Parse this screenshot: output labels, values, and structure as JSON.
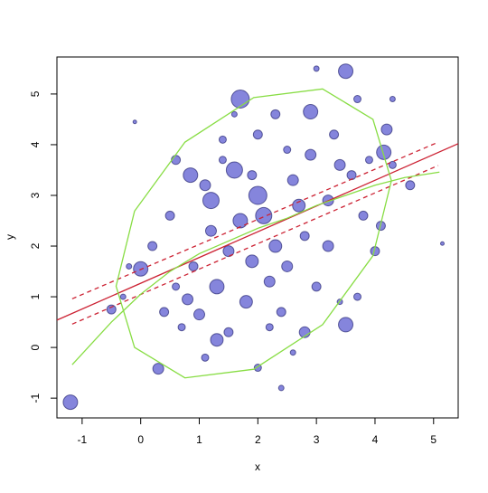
{
  "chart_data": {
    "type": "scatter",
    "xlabel": "x",
    "ylabel": "y",
    "xlim": [
      -1.43,
      5.42
    ],
    "ylim": [
      -1.39,
      5.73
    ],
    "xticks": [
      -1,
      0,
      1,
      2,
      3,
      4,
      5
    ],
    "yticks": [
      -1,
      0,
      1,
      2,
      3,
      4,
      5
    ],
    "color": "#2020c0",
    "x": [
      -1.2,
      1.7,
      3.5,
      3.0,
      2.9,
      4.2,
      4.15,
      0.85,
      3.5,
      5.15,
      0.3,
      0.0,
      -0.5,
      2.0,
      -0.1,
      2.3,
      1.6,
      2.0,
      1.2,
      1.3,
      0.8,
      1.0,
      2.5,
      3.2,
      3.8,
      2.7,
      2.3,
      1.9,
      0.5,
      0.6,
      1.5,
      1.3,
      2.4,
      2.8,
      3.0,
      4.0,
      3.4,
      3.6,
      3.3,
      2.9,
      0.2,
      1.7,
      2.6,
      1.1,
      2.1,
      1.5,
      0.9,
      3.9,
      4.3,
      4.6,
      3.7,
      -0.3,
      1.8,
      2.2,
      2.0,
      1.4,
      0.4,
      1.1,
      2.6,
      3.4,
      0.7,
      1.9,
      1.2,
      2.8,
      3.2,
      4.1,
      2.5,
      1.6,
      3.7,
      4.3,
      -0.2,
      0.6,
      2.2,
      2.4,
      1.4
    ],
    "y": [
      -1.08,
      4.9,
      5.45,
      5.5,
      4.65,
      4.3,
      3.85,
      3.4,
      0.45,
      2.05,
      -0.42,
      1.55,
      0.75,
      -0.4,
      4.45,
      4.6,
      3.5,
      3.0,
      2.9,
      1.2,
      0.95,
      0.65,
      1.6,
      2.0,
      2.6,
      2.8,
      2.0,
      1.7,
      2.6,
      3.7,
      0.3,
      0.15,
      0.7,
      0.3,
      1.2,
      1.9,
      3.6,
      3.4,
      4.2,
      3.8,
      2.0,
      2.5,
      3.3,
      3.2,
      2.6,
      1.9,
      1.6,
      3.7,
      3.6,
      3.2,
      1.0,
      1.0,
      0.9,
      1.3,
      4.2,
      4.1,
      0.7,
      -0.2,
      -0.1,
      0.9,
      0.4,
      3.4,
      2.3,
      2.2,
      2.9,
      2.4,
      3.9,
      4.6,
      4.9,
      4.9,
      1.6,
      1.2,
      0.4,
      -0.8,
      3.7
    ],
    "sizes": [
      8,
      10,
      8,
      3,
      8,
      6,
      8,
      8,
      8,
      2,
      6,
      8,
      5,
      4,
      2,
      5,
      9,
      10,
      9,
      8,
      6,
      6,
      6,
      6,
      5,
      7,
      7,
      7,
      5,
      5,
      5,
      7,
      5,
      6,
      5,
      5,
      6,
      5,
      5,
      6,
      5,
      8,
      6,
      6,
      9,
      6,
      5,
      4,
      4,
      5,
      4,
      3,
      7,
      6,
      5,
      4,
      5,
      4,
      3,
      3,
      4,
      5,
      6,
      5,
      6,
      5,
      4,
      3,
      4,
      3,
      3,
      4,
      4,
      3,
      4
    ],
    "overlays": [
      {
        "type": "line",
        "color": "#cc2233",
        "dash": false,
        "x": [
          -1.43,
          5.42
        ],
        "y": [
          0.54,
          4.02
        ]
      },
      {
        "type": "line",
        "color": "#cc2233",
        "dash": true,
        "x": [
          -1.17,
          5.08
        ],
        "y": [
          0.96,
          4.05
        ]
      },
      {
        "type": "line",
        "color": "#cc2233",
        "dash": true,
        "x": [
          -1.17,
          5.08
        ],
        "y": [
          0.46,
          3.59
        ]
      },
      {
        "type": "line",
        "color": "#88dd44",
        "dash": false,
        "x": [
          -1.17,
          -0.5,
          0,
          0.5,
          1,
          1.5,
          2,
          2.5,
          3,
          3.5,
          4,
          4.5,
          5.1
        ],
        "y": [
          -0.34,
          0.5,
          1.05,
          1.5,
          1.85,
          2.1,
          2.35,
          2.55,
          2.8,
          3.0,
          3.2,
          3.35,
          3.46
        ]
      },
      {
        "type": "line",
        "color": "#88dd44",
        "dash": false,
        "x": [
          4.28,
          3.965,
          3.105,
          1.93,
          0.755,
          -0.105,
          -0.42,
          -0.105,
          0.755,
          1.93,
          3.105,
          3.965,
          4.28
        ],
        "y": [
          3.29,
          4.5,
          5.1,
          4.93,
          4.05,
          2.69,
          1.21,
          0.0,
          -0.6,
          -0.43,
          0.45,
          1.81,
          3.29
        ]
      }
    ]
  }
}
